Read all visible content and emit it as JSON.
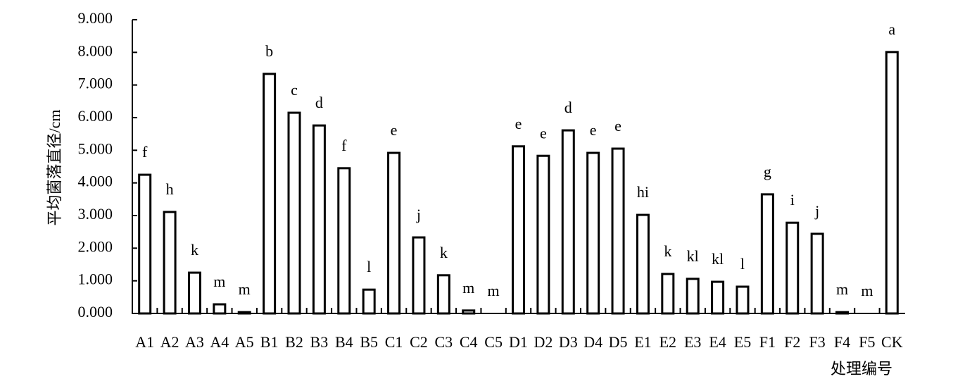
{
  "chart_data": {
    "type": "bar",
    "y_label": "平均菌落直径/cm",
    "x_label": "处理编号",
    "categories": [
      "A1",
      "A2",
      "A3",
      "A4",
      "A5",
      "B1",
      "B2",
      "B3",
      "B4",
      "B5",
      "C1",
      "C2",
      "C3",
      "C4",
      "C5",
      "D1",
      "D2",
      "D3",
      "D4",
      "D5",
      "E1",
      "E2",
      "E3",
      "E4",
      "E5",
      "F1",
      "F2",
      "F3",
      "F4",
      "F5",
      "CK"
    ],
    "values": [
      4.25,
      3.11,
      1.25,
      0.28,
      0.04,
      7.34,
      6.15,
      5.76,
      4.45,
      0.73,
      4.92,
      2.33,
      1.17,
      0.09,
      0,
      5.12,
      4.83,
      5.61,
      4.92,
      5.05,
      3.02,
      1.21,
      1.06,
      0.97,
      0.82,
      3.65,
      2.78,
      2.44,
      0.04,
      0,
      8.01
    ],
    "letters": [
      "f",
      "h",
      "k",
      "m",
      "m",
      "b",
      "c",
      "d",
      "f",
      "l",
      "e",
      "j",
      "k",
      "m",
      "m",
      "e",
      "e",
      "d",
      "e",
      "e",
      "hi",
      "k",
      "kl",
      "kl",
      "l",
      "g",
      "i",
      "j",
      "m",
      "m",
      "a"
    ],
    "color": "#ffffff",
    "ylim": [
      0,
      9
    ],
    "yticks": [
      {
        "value": 0,
        "label": "0.000"
      },
      {
        "value": 1,
        "label": "1.000"
      },
      {
        "value": 2,
        "label": "2.000"
      },
      {
        "value": 3,
        "label": "3.000"
      },
      {
        "value": 4,
        "label": "4.000"
      },
      {
        "value": 5,
        "label": "5.000"
      },
      {
        "value": 6,
        "label": "6.000"
      },
      {
        "value": 7,
        "label": "7.000"
      },
      {
        "value": 8,
        "label": "8.000"
      },
      {
        "value": 9,
        "label": "9.000"
      }
    ]
  }
}
